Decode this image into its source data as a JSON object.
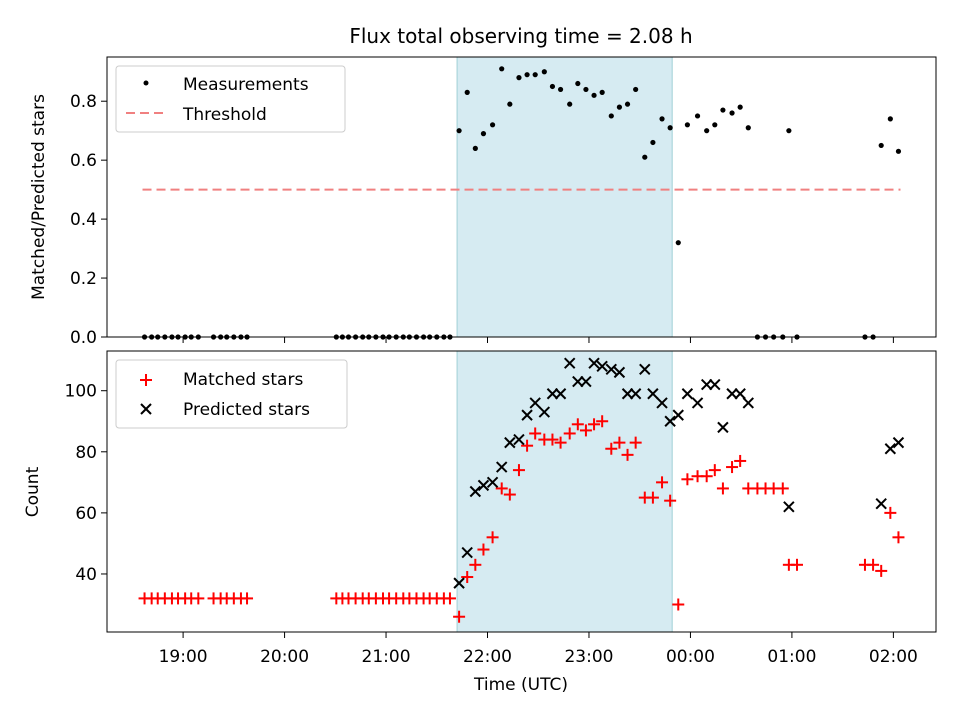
{
  "chart_data": {
    "type": "scatter",
    "title": "Flux total observing time = 2.08 h",
    "xlabel": "Time (UTC)",
    "x_unit": "hours since 19:00 UTC",
    "x_ticks": [
      {
        "value": 0,
        "label": "19:00"
      },
      {
        "value": 1,
        "label": "20:00"
      },
      {
        "value": 2,
        "label": "21:00"
      },
      {
        "value": 3,
        "label": "22:00"
      },
      {
        "value": 4,
        "label": "23:00"
      },
      {
        "value": 5,
        "label": "00:00"
      },
      {
        "value": 6,
        "label": "01:00"
      },
      {
        "value": 7,
        "label": "02:00"
      }
    ],
    "xlim": [
      -0.75,
      7.42
    ],
    "shaded_interval": [
      2.7,
      4.82
    ],
    "top_panel": {
      "ylabel": "Matched/Predicted stars",
      "ylim": [
        0,
        0.95
      ],
      "y_ticks": [
        0.0,
        0.2,
        0.4,
        0.6,
        0.8
      ],
      "y_tick_labels": [
        "0.0",
        "0.2",
        "0.4",
        "0.6",
        "0.8"
      ],
      "legend": [
        "Measurements",
        "Threshold"
      ],
      "threshold": {
        "name": "Threshold",
        "value": 0.5,
        "x_range": [
          -0.4,
          7.07
        ],
        "color": "#f08080"
      },
      "measurements": {
        "name": "Measurements",
        "color": "#000000",
        "points": [
          [
            -0.38,
            0
          ],
          [
            -0.31,
            0
          ],
          [
            -0.25,
            0
          ],
          [
            -0.18,
            0
          ],
          [
            -0.11,
            0
          ],
          [
            -0.05,
            0
          ],
          [
            0.02,
            0
          ],
          [
            0.08,
            0
          ],
          [
            0.15,
            0
          ],
          [
            0.3,
            0
          ],
          [
            0.37,
            0
          ],
          [
            0.43,
            0
          ],
          [
            0.5,
            0
          ],
          [
            0.57,
            0
          ],
          [
            0.63,
            0
          ],
          [
            1.51,
            0
          ],
          [
            1.57,
            0
          ],
          [
            1.63,
            0
          ],
          [
            1.7,
            0
          ],
          [
            1.77,
            0
          ],
          [
            1.83,
            0
          ],
          [
            1.9,
            0
          ],
          [
            1.97,
            0
          ],
          [
            2.03,
            0
          ],
          [
            2.1,
            0
          ],
          [
            2.17,
            0
          ],
          [
            2.23,
            0
          ],
          [
            2.3,
            0
          ],
          [
            2.37,
            0
          ],
          [
            2.43,
            0
          ],
          [
            2.5,
            0
          ],
          [
            2.57,
            0
          ],
          [
            2.63,
            0
          ],
          [
            2.72,
            0.7
          ],
          [
            2.8,
            0.83
          ],
          [
            2.88,
            0.64
          ],
          [
            2.96,
            0.69
          ],
          [
            3.05,
            0.72
          ],
          [
            3.14,
            0.91
          ],
          [
            3.22,
            0.79
          ],
          [
            3.31,
            0.88
          ],
          [
            3.39,
            0.89
          ],
          [
            3.47,
            0.89
          ],
          [
            3.56,
            0.9
          ],
          [
            3.64,
            0.85
          ],
          [
            3.72,
            0.84
          ],
          [
            3.81,
            0.79
          ],
          [
            3.89,
            0.86
          ],
          [
            3.97,
            0.84
          ],
          [
            4.05,
            0.82
          ],
          [
            4.13,
            0.83
          ],
          [
            4.22,
            0.75
          ],
          [
            4.3,
            0.78
          ],
          [
            4.38,
            0.79
          ],
          [
            4.46,
            0.84
          ],
          [
            4.55,
            0.61
          ],
          [
            4.63,
            0.66
          ],
          [
            4.72,
            0.74
          ],
          [
            4.8,
            0.71
          ],
          [
            4.88,
            0.32
          ],
          [
            4.97,
            0.72
          ],
          [
            5.07,
            0.75
          ],
          [
            5.16,
            0.7
          ],
          [
            5.24,
            0.72
          ],
          [
            5.32,
            0.77
          ],
          [
            5.41,
            0.76
          ],
          [
            5.49,
            0.78
          ],
          [
            5.57,
            0.71
          ],
          [
            5.66,
            0
          ],
          [
            5.74,
            0
          ],
          [
            5.82,
            0
          ],
          [
            5.91,
            0
          ],
          [
            5.97,
            0.7
          ],
          [
            6.05,
            0
          ],
          [
            6.72,
            0
          ],
          [
            6.8,
            0
          ],
          [
            6.88,
            0.65
          ],
          [
            6.97,
            0.74
          ],
          [
            7.05,
            0.63
          ]
        ]
      }
    },
    "bottom_panel": {
      "ylabel": "Count",
      "ylim": [
        21,
        113
      ],
      "y_ticks": [
        40,
        60,
        80,
        100
      ],
      "y_tick_labels": [
        "40",
        "60",
        "80",
        "100"
      ],
      "legend": [
        "Matched stars",
        "Predicted stars"
      ],
      "series": [
        {
          "name": "Matched stars",
          "marker": "plus",
          "color": "#ff0000",
          "points": [
            [
              -0.38,
              32
            ],
            [
              -0.31,
              32
            ],
            [
              -0.25,
              32
            ],
            [
              -0.18,
              32
            ],
            [
              -0.11,
              32
            ],
            [
              -0.05,
              32
            ],
            [
              0.02,
              32
            ],
            [
              0.08,
              32
            ],
            [
              0.15,
              32
            ],
            [
              0.3,
              32
            ],
            [
              0.37,
              32
            ],
            [
              0.43,
              32
            ],
            [
              0.5,
              32
            ],
            [
              0.57,
              32
            ],
            [
              0.63,
              32
            ],
            [
              1.51,
              32
            ],
            [
              1.57,
              32
            ],
            [
              1.63,
              32
            ],
            [
              1.7,
              32
            ],
            [
              1.77,
              32
            ],
            [
              1.83,
              32
            ],
            [
              1.9,
              32
            ],
            [
              1.97,
              32
            ],
            [
              2.03,
              32
            ],
            [
              2.1,
              32
            ],
            [
              2.17,
              32
            ],
            [
              2.23,
              32
            ],
            [
              2.3,
              32
            ],
            [
              2.37,
              32
            ],
            [
              2.43,
              32
            ],
            [
              2.5,
              32
            ],
            [
              2.57,
              32
            ],
            [
              2.63,
              32
            ],
            [
              2.72,
              26
            ],
            [
              2.8,
              39
            ],
            [
              2.88,
              43
            ],
            [
              2.96,
              48
            ],
            [
              3.05,
              52
            ],
            [
              3.14,
              68
            ],
            [
              3.22,
              66
            ],
            [
              3.31,
              74
            ],
            [
              3.39,
              82
            ],
            [
              3.47,
              86
            ],
            [
              3.56,
              84
            ],
            [
              3.64,
              84
            ],
            [
              3.72,
              83
            ],
            [
              3.81,
              86
            ],
            [
              3.89,
              89
            ],
            [
              3.97,
              87
            ],
            [
              4.05,
              89
            ],
            [
              4.13,
              90
            ],
            [
              4.22,
              81
            ],
            [
              4.3,
              83
            ],
            [
              4.38,
              79
            ],
            [
              4.46,
              83
            ],
            [
              4.55,
              65
            ],
            [
              4.63,
              65
            ],
            [
              4.72,
              70
            ],
            [
              4.8,
              64
            ],
            [
              4.88,
              30
            ],
            [
              4.97,
              71
            ],
            [
              5.07,
              72
            ],
            [
              5.16,
              72
            ],
            [
              5.24,
              74
            ],
            [
              5.32,
              68
            ],
            [
              5.41,
              75
            ],
            [
              5.49,
              77
            ],
            [
              5.57,
              68
            ],
            [
              5.66,
              68
            ],
            [
              5.74,
              68
            ],
            [
              5.82,
              68
            ],
            [
              5.91,
              68
            ],
            [
              5.97,
              43
            ],
            [
              6.05,
              43
            ],
            [
              6.72,
              43
            ],
            [
              6.8,
              43
            ],
            [
              6.88,
              41
            ],
            [
              6.97,
              60
            ],
            [
              7.05,
              52
            ]
          ]
        },
        {
          "name": "Predicted stars",
          "marker": "x",
          "color": "#000000",
          "points": [
            [
              2.72,
              37
            ],
            [
              2.8,
              47
            ],
            [
              2.88,
              67
            ],
            [
              2.96,
              69
            ],
            [
              3.05,
              70
            ],
            [
              3.14,
              75
            ],
            [
              3.22,
              83
            ],
            [
              3.31,
              84
            ],
            [
              3.39,
              92
            ],
            [
              3.47,
              96
            ],
            [
              3.56,
              93
            ],
            [
              3.64,
              99
            ],
            [
              3.72,
              99
            ],
            [
              3.81,
              109
            ],
            [
              3.89,
              103
            ],
            [
              3.97,
              103
            ],
            [
              4.05,
              109
            ],
            [
              4.13,
              108
            ],
            [
              4.22,
              107
            ],
            [
              4.3,
              106
            ],
            [
              4.38,
              99
            ],
            [
              4.46,
              99
            ],
            [
              4.55,
              107
            ],
            [
              4.63,
              99
            ],
            [
              4.72,
              96
            ],
            [
              4.8,
              90
            ],
            [
              4.88,
              92
            ],
            [
              4.97,
              99
            ],
            [
              5.07,
              96
            ],
            [
              5.16,
              102
            ],
            [
              5.24,
              102
            ],
            [
              5.32,
              88
            ],
            [
              5.41,
              99
            ],
            [
              5.49,
              99
            ],
            [
              5.57,
              96
            ],
            [
              5.97,
              62
            ],
            [
              6.88,
              63
            ],
            [
              6.97,
              81
            ],
            [
              7.05,
              83
            ]
          ]
        }
      ]
    }
  }
}
